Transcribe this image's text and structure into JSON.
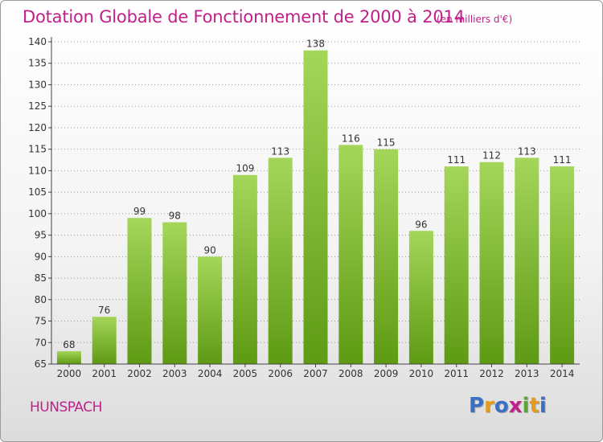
{
  "header": {
    "title": "Dotation Globale de Fonctionnement de 2000 à 2014",
    "subtitle": "(en milliers d'€)"
  },
  "footer": {
    "commune": "HUNSPACH",
    "logo_text": "Proxiti",
    "logo_colors": [
      "#3a6fc4",
      "#e89a1a",
      "#3a6fc4",
      "#c0208a",
      "#5aa832",
      "#e89a1a",
      "#3a6fc4"
    ]
  },
  "colors": {
    "title": "#c0208a",
    "bar_light": "#a4d65a",
    "bar_dark": "#5e9a14",
    "axis": "#444444",
    "grid": "#999999"
  },
  "chart_data": {
    "type": "bar",
    "categories": [
      "2000",
      "2001",
      "2002",
      "2003",
      "2004",
      "2005",
      "2006",
      "2007",
      "2008",
      "2009",
      "2010",
      "2011",
      "2012",
      "2013",
      "2014"
    ],
    "values": [
      68,
      76,
      99,
      98,
      90,
      109,
      113,
      138,
      116,
      115,
      96,
      111,
      112,
      113,
      111
    ],
    "ylim": [
      65,
      140
    ],
    "yticks": [
      65,
      70,
      75,
      80,
      85,
      90,
      95,
      100,
      105,
      110,
      115,
      120,
      125,
      130,
      135,
      140
    ],
    "data_labels": true,
    "grid": true
  }
}
